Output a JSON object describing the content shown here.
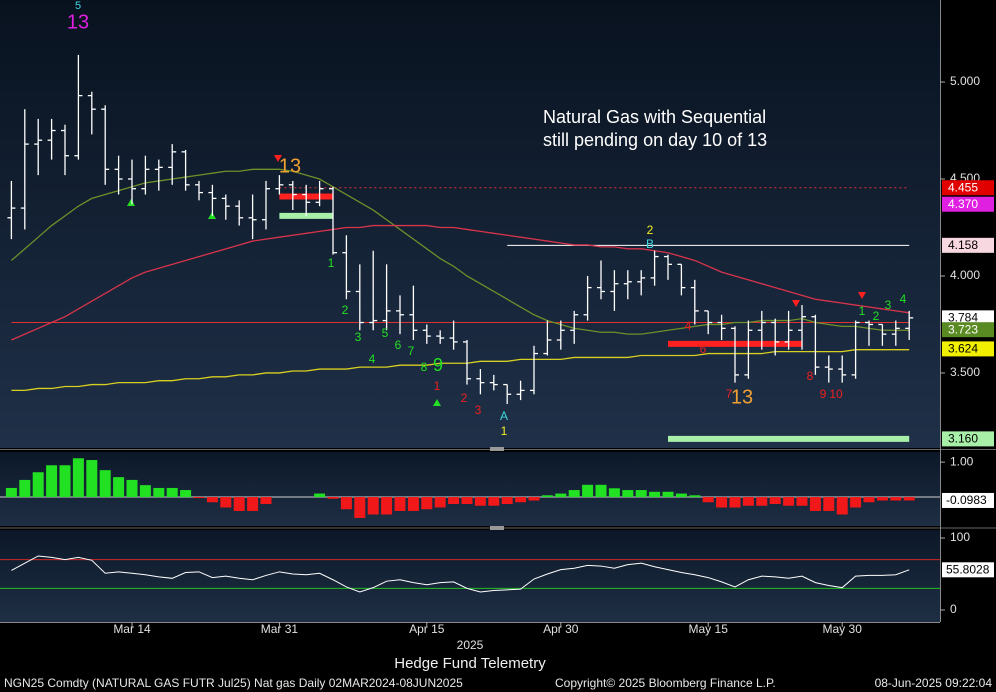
{
  "chart_data": [
    {
      "type": "ohlc",
      "categories": [
        null,
        null,
        null,
        null,
        null,
        null,
        null,
        null,
        null,
        "Mar 14",
        null,
        null,
        null,
        null,
        null,
        null,
        null,
        null,
        null,
        null,
        "Mar 31",
        null,
        null,
        null,
        null,
        null,
        null,
        null,
        null,
        null,
        null,
        "Apr 15",
        null,
        null,
        null,
        null,
        null,
        null,
        null,
        null,
        null,
        "Apr 30",
        null,
        null,
        null,
        null,
        null,
        null,
        null,
        null,
        null,
        null,
        "May 15",
        null,
        null,
        null,
        null,
        null,
        null,
        null,
        null,
        null,
        "May 30",
        null,
        null,
        null,
        null,
        null
      ],
      "xlabel": "2025",
      "color": "#ffffff",
      "open": [
        4.3,
        4.35,
        4.68,
        4.7,
        4.75,
        4.62,
        4.93,
        4.86,
        4.55,
        4.5,
        4.45,
        4.55,
        4.56,
        4.64,
        4.47,
        4.43,
        4.4,
        4.36,
        4.3,
        4.29,
        4.45,
        4.47,
        4.42,
        4.38,
        4.45,
        4.12,
        3.92,
        3.76,
        3.77,
        3.82,
        3.8,
        3.72,
        3.69,
        3.68,
        3.66,
        3.47,
        3.45,
        3.44,
        3.39,
        3.41,
        3.6,
        3.67,
        3.72,
        3.8,
        3.94,
        3.92,
        3.96,
        3.97,
        3.99,
        4.1,
        4.06,
        3.94,
        3.82,
        3.76,
        3.73,
        3.49,
        3.72,
        3.76,
        3.66,
        3.72,
        3.79,
        3.53,
        3.52,
        3.49,
        3.76,
        3.75,
        3.7,
        3.73
      ],
      "high": [
        4.49,
        4.86,
        4.81,
        4.81,
        4.78,
        5.14,
        4.95,
        4.88,
        4.62,
        4.6,
        4.62,
        4.6,
        4.68,
        4.65,
        4.49,
        4.47,
        4.42,
        4.39,
        4.42,
        4.49,
        4.52,
        4.49,
        4.47,
        4.49,
        4.46,
        4.21,
        4.06,
        4.13,
        4.06,
        3.9,
        3.95,
        3.75,
        3.72,
        3.77,
        3.67,
        3.52,
        3.49,
        3.44,
        3.46,
        3.64,
        3.77,
        3.77,
        3.82,
        4.0,
        4.08,
        4.03,
        4.03,
        4.03,
        4.13,
        4.11,
        4.06,
        3.98,
        3.82,
        3.8,
        3.74,
        3.77,
        3.82,
        3.78,
        3.82,
        3.85,
        3.8,
        3.59,
        3.59,
        3.77,
        3.77,
        3.75,
        3.77,
        3.82
      ],
      "low": [
        4.19,
        4.24,
        4.52,
        4.6,
        4.52,
        4.6,
        4.73,
        4.47,
        4.42,
        4.37,
        4.42,
        4.44,
        4.47,
        4.44,
        4.39,
        4.31,
        4.29,
        4.26,
        4.19,
        4.24,
        4.42,
        4.34,
        4.31,
        4.36,
        4.11,
        3.88,
        3.72,
        3.72,
        3.72,
        3.7,
        3.67,
        3.65,
        3.65,
        3.62,
        3.44,
        3.39,
        3.41,
        3.34,
        3.36,
        3.39,
        3.59,
        3.62,
        3.65,
        3.77,
        3.88,
        3.82,
        3.88,
        3.9,
        3.95,
        3.98,
        3.9,
        3.75,
        3.7,
        3.67,
        3.45,
        3.47,
        3.62,
        3.59,
        3.62,
        3.62,
        3.49,
        3.45,
        3.45,
        3.47,
        3.64,
        3.64,
        3.64,
        3.67
      ],
      "close": [
        4.35,
        4.68,
        4.7,
        4.75,
        4.62,
        4.93,
        4.86,
        4.55,
        4.5,
        4.45,
        4.55,
        4.56,
        4.64,
        4.47,
        4.43,
        4.4,
        4.36,
        4.3,
        4.29,
        4.45,
        4.47,
        4.42,
        4.38,
        4.45,
        4.12,
        3.92,
        3.76,
        3.77,
        3.82,
        3.8,
        3.72,
        3.69,
        3.68,
        3.66,
        3.47,
        3.45,
        3.44,
        3.39,
        3.41,
        3.6,
        3.67,
        3.72,
        3.8,
        3.94,
        3.92,
        3.96,
        3.97,
        3.99,
        4.1,
        4.06,
        3.94,
        3.82,
        3.76,
        3.73,
        3.49,
        3.72,
        3.76,
        3.66,
        3.72,
        3.79,
        3.53,
        3.52,
        3.49,
        3.76,
        3.75,
        3.7,
        3.73,
        3.784
      ],
      "moving_averages": [
        {
          "color": "#6f8f2a",
          "values": [
            4.08,
            4.14,
            4.2,
            4.26,
            4.31,
            4.36,
            4.4,
            4.42,
            4.44,
            4.46,
            4.48,
            4.49,
            4.5,
            4.51,
            4.52,
            4.53,
            4.54,
            4.54,
            4.55,
            4.55,
            4.55,
            4.54,
            4.52,
            4.5,
            4.46,
            4.42,
            4.38,
            4.34,
            4.29,
            4.24,
            4.19,
            4.14,
            4.09,
            4.05,
            4.0,
            3.96,
            3.92,
            3.88,
            3.84,
            3.8,
            3.77,
            3.75,
            3.73,
            3.72,
            3.71,
            3.71,
            3.7,
            3.7,
            3.71,
            3.72,
            3.73,
            3.74,
            3.75,
            3.75,
            3.76,
            3.76,
            3.77,
            3.77,
            3.77,
            3.78,
            3.76,
            3.75,
            3.74,
            3.74,
            3.73,
            3.72,
            3.72,
            3.72
          ]
        },
        {
          "color": "#d8344c",
          "values": [
            3.67,
            3.7,
            3.73,
            3.76,
            3.79,
            3.83,
            3.87,
            3.91,
            3.95,
            3.99,
            4.02,
            4.04,
            4.06,
            4.08,
            4.1,
            4.12,
            4.14,
            4.16,
            4.18,
            4.19,
            4.2,
            4.21,
            4.22,
            4.23,
            4.24,
            4.25,
            4.25,
            4.26,
            4.26,
            4.26,
            4.26,
            4.26,
            4.25,
            4.25,
            4.24,
            4.23,
            4.22,
            4.21,
            4.2,
            4.19,
            4.18,
            4.17,
            4.16,
            4.16,
            4.15,
            4.15,
            4.14,
            4.14,
            4.13,
            4.12,
            4.1,
            4.08,
            4.05,
            4.02,
            4.0,
            3.98,
            3.96,
            3.94,
            3.92,
            3.9,
            3.88,
            3.87,
            3.86,
            3.85,
            3.84,
            3.83,
            3.82,
            3.81
          ]
        },
        {
          "color": "#d8d020",
          "values": [
            3.41,
            3.41,
            3.42,
            3.42,
            3.43,
            3.43,
            3.44,
            3.44,
            3.45,
            3.45,
            3.45,
            3.46,
            3.46,
            3.47,
            3.47,
            3.48,
            3.48,
            3.49,
            3.49,
            3.5,
            3.5,
            3.51,
            3.51,
            3.52,
            3.52,
            3.52,
            3.53,
            3.53,
            3.53,
            3.54,
            3.54,
            3.54,
            3.55,
            3.55,
            3.55,
            3.56,
            3.56,
            3.56,
            3.57,
            3.57,
            3.57,
            3.57,
            3.58,
            3.58,
            3.58,
            3.58,
            3.58,
            3.59,
            3.59,
            3.59,
            3.59,
            3.59,
            3.6,
            3.6,
            3.6,
            3.6,
            3.6,
            3.61,
            3.61,
            3.61,
            3.61,
            3.61,
            3.61,
            3.62,
            3.62,
            3.62,
            3.62,
            3.62
          ]
        }
      ],
      "levels": [
        {
          "value": 4.455,
          "color": "#e03030",
          "style": "dotted",
          "from": 20,
          "to": 67
        },
        {
          "value": 4.158,
          "color": "#ffffff",
          "style": "solid",
          "from": 37,
          "to": 67
        },
        {
          "value": 3.76,
          "color": "#e03030",
          "style": "solid",
          "from": 0,
          "to": 67
        },
        {
          "value": 4.41,
          "color": "#ff2020",
          "style": "thick",
          "from": 20,
          "to": 24
        },
        {
          "value": 4.31,
          "color": "#a8f0a8",
          "style": "thick",
          "from": 20,
          "to": 24
        },
        {
          "value": 3.65,
          "color": "#ff2020",
          "style": "thick",
          "from": 49,
          "to": 59
        },
        {
          "value": 3.16,
          "color": "#a8f0a8",
          "style": "thick",
          "from": 49,
          "to": 67
        }
      ],
      "tags": [
        {
          "value": 4.455,
          "color": "#e00000",
          "text_color": "#ffffff"
        },
        {
          "value": 4.37,
          "label": "4.370",
          "color": "#e020e0",
          "text_color": "#ffffff"
        },
        {
          "value": 4.158,
          "color": "#f8d8e0",
          "text_color": "#000000"
        },
        {
          "value": 3.784,
          "color": "#ffffff",
          "text_color": "#000000"
        },
        {
          "value": 3.723,
          "color": "#5a8a22",
          "text_color": "#ffffff"
        },
        {
          "value": 3.624,
          "color": "#f0f000",
          "text_color": "#000000"
        },
        {
          "value": 3.16,
          "label": "3.160",
          "color": "#a8f0a8",
          "text_color": "#000000"
        }
      ],
      "ylim": [
        3.113,
        5.423
      ],
      "yticks": [
        {
          "value": 3.5,
          "label": "3.500"
        },
        {
          "value": 4,
          "label": "4.000"
        },
        {
          "value": 4.5,
          "label": "4.500"
        },
        {
          "value": 5,
          "label": "5.000"
        }
      ],
      "annotation": [
        "Natural Gas with Sequential",
        "still pending on day 10 of 13"
      ],
      "sequential_labels": [
        "5",
        "13",
        "13",
        "1",
        "2",
        "3",
        "4",
        "5",
        "6",
        "7",
        "8",
        "9",
        "1",
        "2",
        "3",
        "A",
        "1",
        "2",
        "B",
        "4",
        "6",
        "7",
        "13",
        "8",
        "9",
        "10",
        "1",
        "2",
        "3",
        "4"
      ]
    },
    {
      "type": "bar",
      "values": [
        0.26,
        0.49,
        0.71,
        0.91,
        0.91,
        1.11,
        1.06,
        0.77,
        0.57,
        0.49,
        0.34,
        0.26,
        0.26,
        0.2,
        -0.03,
        -0.15,
        -0.3,
        -0.4,
        -0.4,
        -0.2,
        0,
        0,
        0,
        0.1,
        -0.05,
        -0.35,
        -0.6,
        -0.5,
        -0.5,
        -0.4,
        -0.4,
        -0.35,
        -0.3,
        -0.2,
        -0.2,
        -0.25,
        -0.25,
        -0.2,
        -0.15,
        -0.1,
        0.05,
        0.1,
        0.2,
        0.35,
        0.35,
        0.25,
        0.2,
        0.2,
        0.15,
        0.15,
        0.1,
        0.05,
        -0.15,
        -0.3,
        -0.3,
        -0.25,
        -0.25,
        -0.2,
        -0.25,
        -0.25,
        -0.4,
        -0.4,
        -0.5,
        -0.3,
        -0.15,
        -0.1,
        -0.1,
        -0.0983
      ],
      "positive_color": "#22e022",
      "negative_color": "#f01818",
      "ylim": [
        -0.83,
        1.29
      ],
      "yticks": [
        {
          "value": 1,
          "label": "1.00"
        }
      ]
    },
    {
      "type": "line",
      "values": [
        55,
        65,
        75,
        73,
        70,
        73,
        69,
        51,
        53,
        51,
        49,
        46,
        44,
        52,
        53,
        45,
        47,
        44,
        42,
        48,
        53,
        50,
        49,
        51,
        42,
        32,
        25,
        31,
        40,
        42,
        38,
        35,
        38,
        39,
        30,
        25,
        27,
        28,
        29,
        43,
        50,
        56,
        58,
        62,
        61,
        58,
        63,
        65,
        60,
        56,
        52,
        49,
        45,
        39,
        32,
        42,
        47,
        46,
        44,
        47,
        38,
        34,
        31,
        47,
        48,
        48,
        49,
        55.8028
      ],
      "color": "#ffffff",
      "bands": [
        {
          "value": 70,
          "color": "#d02828"
        },
        {
          "value": 30,
          "color": "#20c020"
        }
      ],
      "ylim": [
        -16.7,
        111.1
      ],
      "yticks": [
        0,
        100
      ]
    }
  ],
  "footer": {
    "caption": "Hedge Fund Telemetry",
    "security": "NGN25 Comdty (NATURAL GAS FUTR  Jul25) Nat gas  Daily 02MAR2024-08JUN2025",
    "copyright": "Copyright© 2025 Bloomberg Finance L.P.",
    "timestamp": "08-Jun-2025 09:22:04"
  }
}
